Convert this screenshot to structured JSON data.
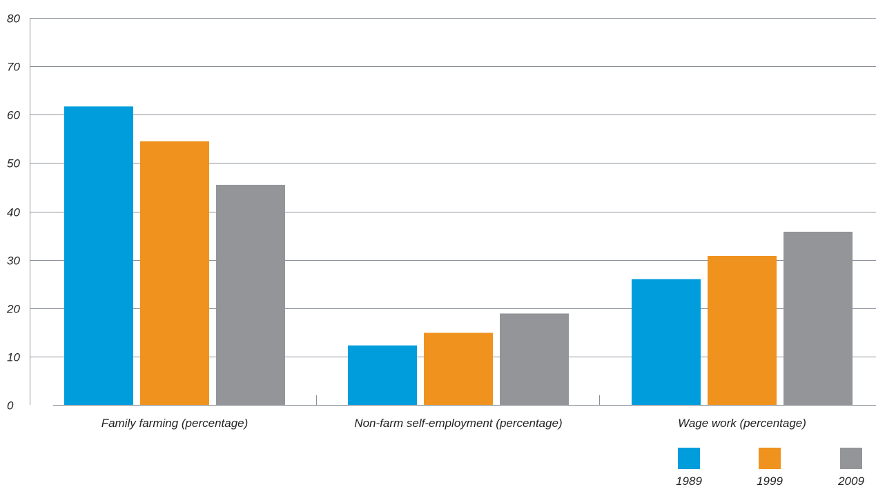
{
  "chart_data": {
    "type": "bar",
    "categories": [
      "Family farming (percentage)",
      "Non-farm self-employment (percentage)",
      "Wage work (percentage)"
    ],
    "series": [
      {
        "name": "1989",
        "values": [
          61.7,
          12.3,
          26.0
        ],
        "color": "#009ddc"
      },
      {
        "name": "1999",
        "values": [
          54.5,
          14.9,
          30.8
        ],
        "color": "#f0921e"
      },
      {
        "name": "2009",
        "values": [
          45.5,
          18.9,
          35.8
        ],
        "color": "#939598"
      }
    ],
    "yticks": [
      0,
      10,
      20,
      30,
      40,
      50,
      60,
      70,
      80
    ],
    "ylim": [
      0,
      80
    ],
    "grid": true,
    "legend": "bottom-right"
  }
}
